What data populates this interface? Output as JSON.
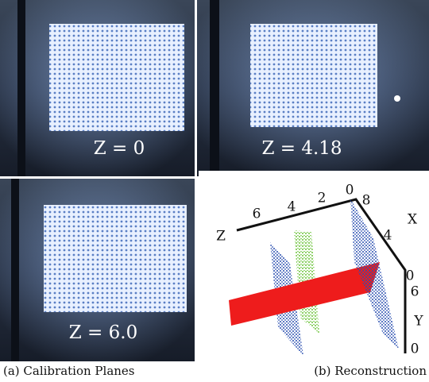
{
  "panels": [
    {
      "label": "Z = 0"
    },
    {
      "label": "Z = 4.18"
    },
    {
      "label": "Z = 6.0"
    }
  ],
  "plot": {
    "axes": {
      "z": {
        "label": "Z",
        "ticks": [
          6,
          4,
          2,
          0
        ]
      },
      "x": {
        "label": "X",
        "ticks": [
          8,
          4,
          0
        ]
      },
      "y": {
        "label": "Y",
        "ticks": [
          6,
          0
        ]
      }
    }
  },
  "captions": [
    "(a) Calibration Planes",
    "(b) Reconstruction"
  ]
}
